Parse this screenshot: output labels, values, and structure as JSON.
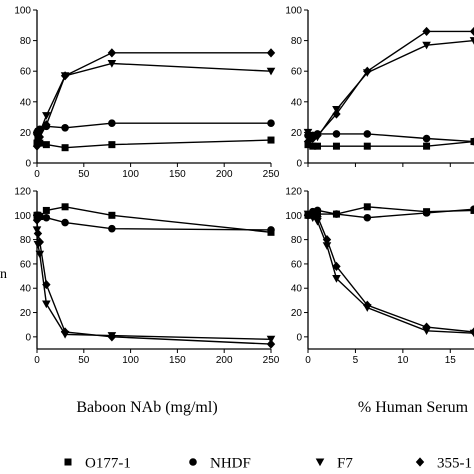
{
  "chart_data": [
    {
      "type": "line",
      "panel": "top-left",
      "xlabel": "",
      "ylabel": "",
      "xlim": [
        0,
        250
      ],
      "ylim": [
        0,
        100
      ],
      "yticks": [
        "0",
        "20",
        "40",
        "60",
        "80",
        "100"
      ],
      "xticks": [
        "0",
        "50",
        "100",
        "150",
        "200",
        "250"
      ],
      "series": [
        {
          "name": "O177-1",
          "x": [
            0,
            1,
            3,
            10,
            30,
            80,
            250
          ],
          "y": [
            13,
            15,
            13,
            12,
            10,
            12,
            15
          ]
        },
        {
          "name": "NHDF",
          "x": [
            0,
            1,
            3,
            10,
            30,
            80,
            250
          ],
          "y": [
            20,
            21,
            22,
            24,
            23,
            26,
            26
          ]
        },
        {
          "name": "F7",
          "x": [
            0,
            1,
            3,
            10,
            30,
            80,
            250
          ],
          "y": [
            17,
            19,
            20,
            31,
            57,
            65,
            60
          ]
        },
        {
          "name": "355-1",
          "x": [
            0,
            1,
            3,
            10,
            30,
            80,
            250
          ],
          "y": [
            11,
            15,
            17,
            25,
            57,
            72,
            72
          ]
        }
      ]
    },
    {
      "type": "line",
      "panel": "top-right",
      "xlabel": "",
      "ylabel": "",
      "xlim": [
        0,
        17.5
      ],
      "ylim": [
        0,
        100
      ],
      "yticks": [
        "0",
        "20",
        "40",
        "60",
        "80",
        "100"
      ],
      "series": [
        {
          "name": "O177-1",
          "x": [
            0,
            0.5,
            1,
            3,
            6.25,
            12.5,
            17.5
          ],
          "y": [
            12,
            11,
            11,
            11,
            11,
            11,
            14
          ]
        },
        {
          "name": "NHDF",
          "x": [
            0,
            0.5,
            1,
            3,
            6.25,
            12.5,
            17.5
          ],
          "y": [
            18,
            18,
            19,
            19,
            19,
            16,
            14
          ]
        },
        {
          "name": "F7",
          "x": [
            0,
            0.5,
            1,
            3,
            6.25,
            12.5,
            17.5
          ],
          "y": [
            20,
            18,
            17,
            35,
            59,
            77,
            80
          ]
        },
        {
          "name": "355-1",
          "x": [
            0,
            0.5,
            1,
            3,
            6.25,
            12.5,
            17.5
          ],
          "y": [
            14,
            16,
            18,
            32,
            60,
            86,
            86
          ]
        }
      ]
    },
    {
      "type": "line",
      "panel": "bottom-left",
      "xlabel": "Baboon NAb (mg/ml)",
      "ylabel": "n",
      "xlim": [
        0,
        250
      ],
      "ylim": [
        -10,
        120
      ],
      "yticks": [
        "0",
        "20",
        "40",
        "60",
        "80",
        "100",
        "120"
      ],
      "xticks": [
        "0",
        "50",
        "100",
        "150",
        "200",
        "250"
      ],
      "series": [
        {
          "name": "O177-1",
          "x": [
            0,
            1,
            3,
            10,
            30,
            80,
            250
          ],
          "y": [
            100,
            100,
            99,
            104,
            107,
            100,
            86
          ]
        },
        {
          "name": "NHDF",
          "x": [
            0,
            1,
            3,
            10,
            30,
            80,
            250
          ],
          "y": [
            100,
            100,
            99,
            98,
            94,
            89,
            88
          ]
        },
        {
          "name": "F7",
          "x": [
            0,
            1,
            3,
            10,
            30,
            80,
            250
          ],
          "y": [
            88,
            76,
            68,
            27,
            2,
            1,
            -2
          ]
        },
        {
          "name": "355-1",
          "x": [
            0,
            1,
            3,
            10,
            30,
            80,
            250
          ],
          "y": [
            96,
            85,
            78,
            43,
            4,
            0,
            -6
          ]
        }
      ]
    },
    {
      "type": "line",
      "panel": "bottom-right",
      "xlabel": "% Human Serum",
      "ylabel": "",
      "xlim": [
        0,
        17.5
      ],
      "ylim": [
        -10,
        120
      ],
      "yticks": [
        "0",
        "20",
        "40",
        "60",
        "80",
        "100",
        "120"
      ],
      "xticks": [
        "0",
        "5",
        "10",
        "15"
      ],
      "series": [
        {
          "name": "O177-1",
          "x": [
            0,
            0.5,
            1,
            3,
            6.25,
            12.5,
            17.5
          ],
          "y": [
            100,
            101,
            101,
            101,
            107,
            103,
            104
          ]
        },
        {
          "name": "NHDF",
          "x": [
            0,
            0.5,
            1,
            3,
            6.25,
            12.5,
            17.5
          ],
          "y": [
            100,
            103,
            104,
            101,
            98,
            102,
            105
          ]
        },
        {
          "name": "F7",
          "x": [
            0,
            0.5,
            1,
            2,
            3,
            6.25,
            12.5,
            17.5
          ],
          "y": [
            101,
            98,
            95,
            75,
            48,
            24,
            5,
            3
          ]
        },
        {
          "name": "355-1",
          "x": [
            0,
            0.5,
            1,
            2,
            3,
            6.25,
            12.5,
            17.5
          ],
          "y": [
            100,
            102,
            99,
            80,
            58,
            26,
            8,
            4
          ]
        }
      ]
    }
  ],
  "legend": {
    "items": [
      {
        "label": "O177-1",
        "marker": "square"
      },
      {
        "label": "NHDF",
        "marker": "circle"
      },
      {
        "label": "F7",
        "marker": "triangle-down"
      },
      {
        "label": "355-1",
        "marker": "diamond"
      }
    ]
  }
}
